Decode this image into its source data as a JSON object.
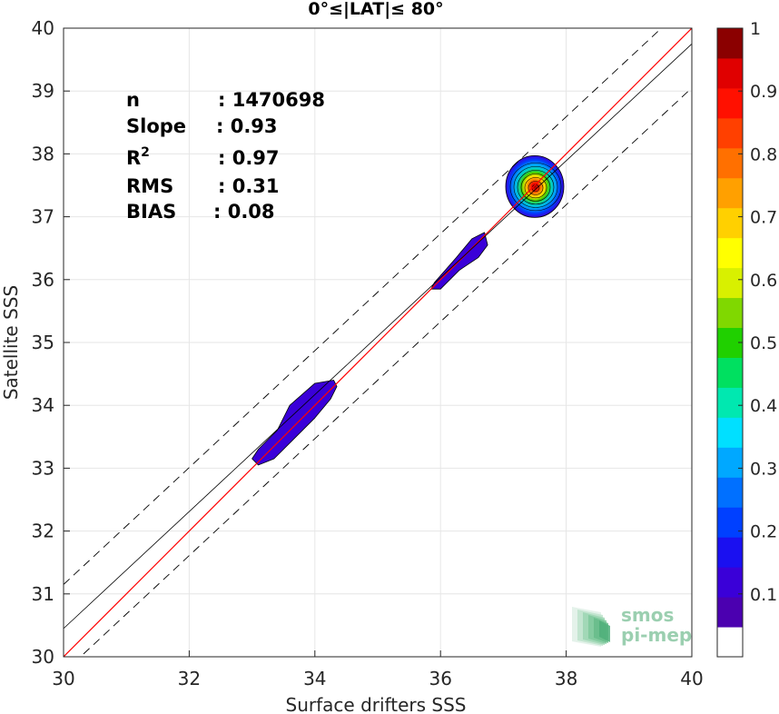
{
  "chart_data": {
    "type": "scatter",
    "title": "0°≤|LAT|≤ 80°",
    "xlabel": "Surface drifters SSS",
    "ylabel": "Satellite SSS",
    "xlim": [
      30,
      40
    ],
    "ylim": [
      30,
      40
    ],
    "xticks": [
      30,
      32,
      34,
      36,
      38,
      40
    ],
    "yticks": [
      30,
      31,
      32,
      33,
      34,
      35,
      36,
      37,
      38,
      39,
      40
    ],
    "grid": true,
    "stats": [
      {
        "label": "n",
        "value": ": 1470698"
      },
      {
        "label": "Slope",
        "value": ": 0.93"
      },
      {
        "label": "R",
        "sup": "2",
        "value": ": 0.97"
      },
      {
        "label": "RMS",
        "value": ": 0.31"
      },
      {
        "label": "BIAS",
        "value": ": 0.08"
      }
    ],
    "lines": [
      {
        "kind": "one-to-one",
        "color": "#ff0000",
        "style": "solid",
        "x": [
          30,
          40
        ],
        "y": [
          30,
          40
        ]
      },
      {
        "kind": "regression",
        "color": "#000000",
        "style": "solid",
        "x": [
          30,
          40
        ],
        "y": [
          30.45,
          39.75
        ]
      },
      {
        "kind": "upper-bound",
        "color": "#000000",
        "style": "dashed",
        "x": [
          30,
          40
        ],
        "y": [
          31.15,
          40.45
        ]
      },
      {
        "kind": "lower-bound",
        "color": "#000000",
        "style": "dashed",
        "x": [
          30,
          40
        ],
        "y": [
          29.75,
          39.05
        ]
      }
    ],
    "density_regions": [
      {
        "name": "low-salinity-cluster",
        "x": [
          33.0,
          33.1,
          33.35,
          33.7,
          34.0,
          34.25,
          34.35,
          34.3,
          34.0,
          33.6,
          33.4,
          33.1
        ],
        "y": [
          33.15,
          33.05,
          33.15,
          33.5,
          33.8,
          34.1,
          34.3,
          34.4,
          34.35,
          34.0,
          33.6,
          33.3
        ],
        "level": 0.05
      },
      {
        "name": "mid-salinity-cluster",
        "x": [
          35.85,
          36.0,
          36.3,
          36.6,
          36.75,
          36.7,
          36.5,
          36.25,
          35.9
        ],
        "y": [
          35.85,
          35.85,
          36.15,
          36.35,
          36.55,
          36.75,
          36.65,
          36.35,
          35.95
        ],
        "level": 0.05
      },
      {
        "name": "high-salinity-cluster-peak",
        "center": [
          37.5,
          37.48
        ],
        "levels": [
          0.05,
          0.1,
          0.15,
          0.2,
          0.25,
          0.3,
          0.35,
          0.4,
          0.45,
          0.5,
          0.55,
          0.6,
          0.65,
          0.7,
          0.75,
          0.8,
          0.85,
          0.9,
          0.95,
          1.0
        ]
      }
    ],
    "colorbar": {
      "range": [
        0,
        1
      ],
      "ticks": [
        "0.1",
        "0.2",
        "0.3",
        "0.4",
        "0.5",
        "0.6",
        "0.7",
        "0.8",
        "0.9",
        "1"
      ],
      "colors": [
        "#ffffff",
        "#4b00b0",
        "#3a00d8",
        "#1a10f0",
        "#0040ff",
        "#0070ff",
        "#00a8ff",
        "#00e0ff",
        "#00e8b0",
        "#00e060",
        "#20d000",
        "#80d800",
        "#d8f000",
        "#ffff00",
        "#ffd000",
        "#ffa000",
        "#ff7000",
        "#ff4000",
        "#ff1000",
        "#e00000",
        "#8b0000"
      ]
    },
    "logo": {
      "line1": "smos",
      "line2": "pi-mep"
    }
  }
}
